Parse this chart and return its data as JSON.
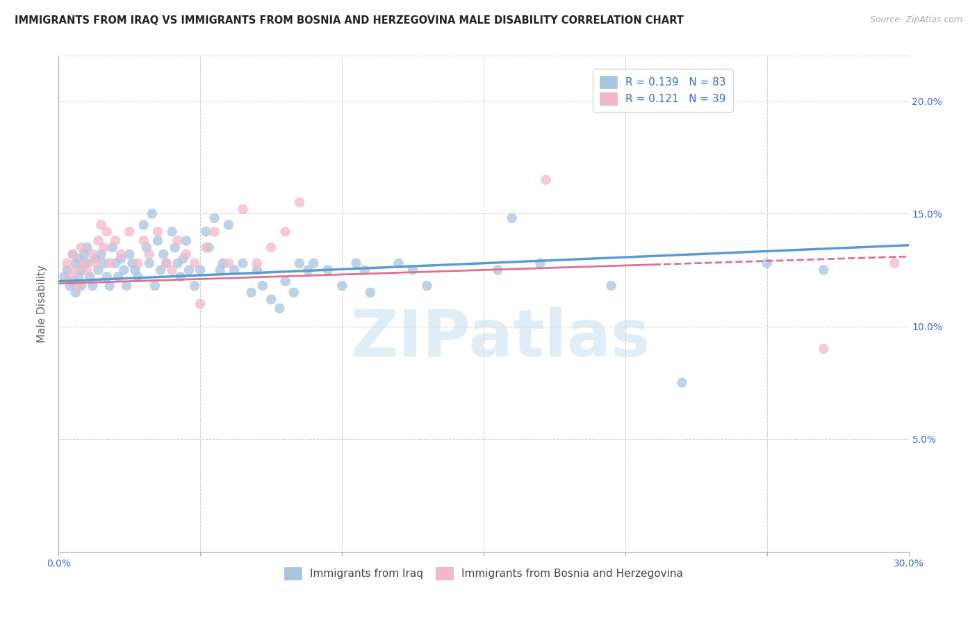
{
  "title": "IMMIGRANTS FROM IRAQ VS IMMIGRANTS FROM BOSNIA AND HERZEGOVINA MALE DISABILITY CORRELATION CHART",
  "source": "Source: ZipAtlas.com",
  "ylabel": "Male Disability",
  "x_min": 0.0,
  "x_max": 0.3,
  "y_min": 0.0,
  "y_max": 0.22,
  "x_ticks": [
    0.0,
    0.05,
    0.1,
    0.15,
    0.2,
    0.25,
    0.3
  ],
  "y_ticks": [
    0.0,
    0.05,
    0.1,
    0.15,
    0.2
  ],
  "y_tick_labels_right": [
    "",
    "5.0%",
    "10.0%",
    "15.0%",
    "20.0%"
  ],
  "iraq_R": 0.139,
  "iraq_N": 83,
  "bosnia_R": 0.121,
  "bosnia_N": 39,
  "iraq_scatter_color": "#a8c4e0",
  "iraq_line_color": "#5b9bd5",
  "bosnia_scatter_color": "#f4b8c8",
  "bosnia_line_color": "#e07090",
  "text_color_blue": "#3a6bc7",
  "grid_color": "#cccccc",
  "watermark": "ZIPatlas",
  "watermark_color": "#c8dff0",
  "legend_label_iraq": "Immigrants from Iraq",
  "legend_label_bosnia": "Immigrants from Bosnia and Herzegovina",
  "title_fontsize": 10.5,
  "source_fontsize": 9,
  "tick_fontsize": 10,
  "ylabel_fontsize": 11,
  "legend_fontsize": 11,
  "scatter_size": 110,
  "scatter_alpha": 0.75,
  "iraq_trend_start_y": 0.12,
  "iraq_trend_end_y": 0.136,
  "bosnia_trend_start_y": 0.119,
  "bosnia_trend_end_y": 0.131,
  "iraq_x": [
    0.002,
    0.003,
    0.004,
    0.005,
    0.005,
    0.006,
    0.006,
    0.007,
    0.007,
    0.008,
    0.008,
    0.009,
    0.01,
    0.01,
    0.011,
    0.012,
    0.013,
    0.014,
    0.015,
    0.016,
    0.017,
    0.018,
    0.019,
    0.02,
    0.021,
    0.022,
    0.023,
    0.024,
    0.025,
    0.026,
    0.027,
    0.028,
    0.03,
    0.031,
    0.032,
    0.033,
    0.034,
    0.035,
    0.036,
    0.037,
    0.038,
    0.04,
    0.041,
    0.042,
    0.043,
    0.044,
    0.045,
    0.046,
    0.048,
    0.05,
    0.052,
    0.053,
    0.055,
    0.057,
    0.058,
    0.06,
    0.062,
    0.065,
    0.068,
    0.07,
    0.072,
    0.075,
    0.078,
    0.08,
    0.083,
    0.085,
    0.088,
    0.09,
    0.095,
    0.1,
    0.105,
    0.108,
    0.11,
    0.12,
    0.125,
    0.13,
    0.155,
    0.16,
    0.17,
    0.195,
    0.22,
    0.25,
    0.27
  ],
  "iraq_y": [
    0.122,
    0.125,
    0.118,
    0.132,
    0.12,
    0.128,
    0.115,
    0.122,
    0.13,
    0.118,
    0.125,
    0.132,
    0.128,
    0.135,
    0.122,
    0.118,
    0.13,
    0.125,
    0.132,
    0.128,
    0.122,
    0.118,
    0.135,
    0.128,
    0.122,
    0.13,
    0.125,
    0.118,
    0.132,
    0.128,
    0.125,
    0.122,
    0.145,
    0.135,
    0.128,
    0.15,
    0.118,
    0.138,
    0.125,
    0.132,
    0.128,
    0.142,
    0.135,
    0.128,
    0.122,
    0.13,
    0.138,
    0.125,
    0.118,
    0.125,
    0.142,
    0.135,
    0.148,
    0.125,
    0.128,
    0.145,
    0.125,
    0.128,
    0.115,
    0.125,
    0.118,
    0.112,
    0.108,
    0.12,
    0.115,
    0.128,
    0.125,
    0.128,
    0.125,
    0.118,
    0.128,
    0.125,
    0.115,
    0.128,
    0.125,
    0.118,
    0.125,
    0.148,
    0.128,
    0.118,
    0.075,
    0.128,
    0.125
  ],
  "bosnia_x": [
    0.003,
    0.004,
    0.005,
    0.006,
    0.007,
    0.008,
    0.009,
    0.01,
    0.012,
    0.013,
    0.014,
    0.015,
    0.016,
    0.017,
    0.018,
    0.02,
    0.022,
    0.025,
    0.028,
    0.03,
    0.032,
    0.035,
    0.038,
    0.04,
    0.042,
    0.045,
    0.048,
    0.05,
    0.052,
    0.055,
    0.06,
    0.065,
    0.07,
    0.075,
    0.08,
    0.085,
    0.172,
    0.27,
    0.295
  ],
  "bosnia_y": [
    0.128,
    0.122,
    0.132,
    0.125,
    0.118,
    0.135,
    0.128,
    0.125,
    0.132,
    0.128,
    0.138,
    0.145,
    0.135,
    0.142,
    0.128,
    0.138,
    0.132,
    0.142,
    0.128,
    0.138,
    0.132,
    0.142,
    0.128,
    0.125,
    0.138,
    0.132,
    0.128,
    0.11,
    0.135,
    0.142,
    0.128,
    0.152,
    0.128,
    0.135,
    0.142,
    0.155,
    0.165,
    0.09,
    0.128
  ]
}
